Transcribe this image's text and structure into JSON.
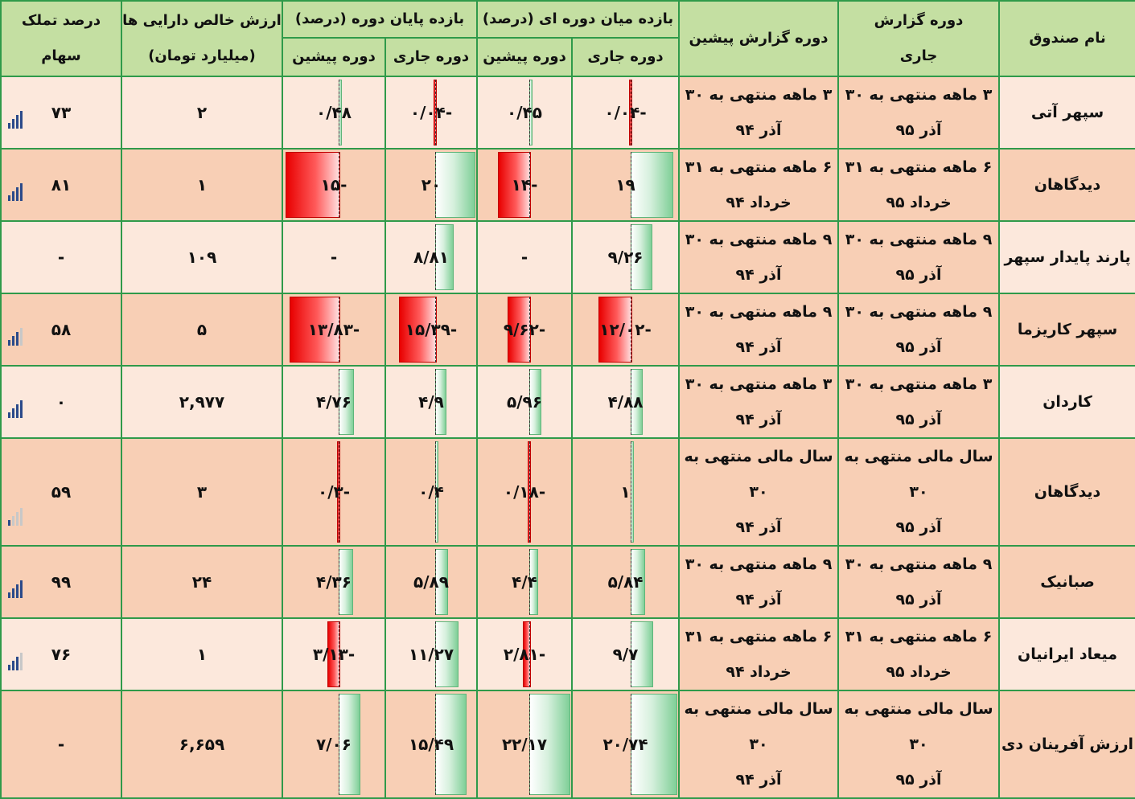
{
  "headers": {
    "fund_name": "نام صندوق",
    "current_period": [
      "دوره گزارش",
      "جاری"
    ],
    "previous_period": "دوره گزارش پیشین",
    "mid_return": "بازده میان دوره ای (درصد)",
    "end_return": "بازده پایان دوره (درصد)",
    "current": "دوره جاری",
    "previous": "دوره پیشین",
    "nav": [
      "ارزش خالص دارایی ها",
      "(میلیارد تومان)"
    ],
    "ownership": [
      "درصد تملک",
      "سهام"
    ]
  },
  "colors": {
    "header_bg": "#c4dfa2",
    "grid": "#2f9a4a",
    "row_light": "#fce8dc",
    "row_dark": "#f8cfb5",
    "positive_bar": "#7fcf97",
    "negative_bar": "#e80000",
    "signal_active": "#2b4a8a",
    "signal_inactive": "#c8c8c8"
  },
  "rows": [
    {
      "name": "سپهر آتی",
      "cur_period": [
        "۳ ماهه منتهی به ۳۰",
        "آذر ۹۵"
      ],
      "prev_period": [
        "۳ ماهه منتهی به ۳۰",
        "آذر ۹۴"
      ],
      "mid_cur": "-۰/۰۴",
      "mid_cur_value": -0.04,
      "mid_prev": "۰/۴۵",
      "mid_prev_value": 0.45,
      "end_cur": "-۰/۰۴",
      "end_cur_value": -0.04,
      "end_prev": "۰/۴۸",
      "end_prev_value": 0.48,
      "nav": "۲",
      "ownership": "۷۳",
      "signal_level": 4
    },
    {
      "name": "دیدگاهان",
      "cur_period": [
        "۶ ماهه منتهی به ۳۱",
        "خرداد ۹۵"
      ],
      "prev_period": [
        "۶ ماهه منتهی به ۳۱",
        "خرداد ۹۴"
      ],
      "mid_cur": "۱۹",
      "mid_cur_value": 19,
      "mid_prev": "-۱۴",
      "mid_prev_value": -14,
      "end_cur": "۲۰",
      "end_cur_value": 20,
      "end_prev": "-۱۵",
      "end_prev_value": -15,
      "nav": "۱",
      "ownership": "۸۱",
      "signal_level": 4
    },
    {
      "name": "پارند پایدار سپهر",
      "cur_period": [
        "۹ ماهه منتهی به ۳۰",
        "آذر ۹۵"
      ],
      "prev_period": [
        "۹ ماهه منتهی به ۳۰",
        "آذر ۹۴"
      ],
      "mid_cur": "۹/۲۶",
      "mid_cur_value": 9.26,
      "mid_prev": "-",
      "mid_prev_value": null,
      "end_cur": "۸/۸۱",
      "end_cur_value": 8.81,
      "end_prev": "-",
      "end_prev_value": null,
      "nav": "۱۰۹",
      "ownership": "-",
      "signal_level": 0
    },
    {
      "name": "سپهر کاریزما",
      "cur_period": [
        "۹ ماهه منتهی به ۳۰",
        "آذر ۹۵"
      ],
      "prev_period": [
        "۹ ماهه منتهی به ۳۰",
        "آذر ۹۴"
      ],
      "mid_cur": "-۱۲/۰۲",
      "mid_cur_value": -12.02,
      "mid_prev": "-۹/۶۲",
      "mid_prev_value": -9.62,
      "end_cur": "-۱۵/۳۹",
      "end_cur_value": -15.39,
      "end_prev": "-۱۳/۸۳",
      "end_prev_value": -13.83,
      "nav": "۵",
      "ownership": "۵۸",
      "signal_level": 3
    },
    {
      "name": "کاردان",
      "cur_period": [
        "۳ ماهه منتهی به ۳۰",
        "آذر ۹۵"
      ],
      "prev_period": [
        "۳ ماهه منتهی به ۳۰",
        "آذر ۹۴"
      ],
      "mid_cur": "۴/۸۸",
      "mid_cur_value": 4.88,
      "mid_prev": "۵/۹۶",
      "mid_prev_value": 5.96,
      "end_cur": "۴/۹",
      "end_cur_value": 4.9,
      "end_prev": "۴/۷۶",
      "end_prev_value": 4.76,
      "nav": "۲,۹۷۷",
      "ownership": "۰",
      "signal_level": 4
    },
    {
      "name": "دیدگاهان",
      "cur_period": [
        "سال مالی منتهی به ۳۰",
        "آذر ۹۵"
      ],
      "prev_period": [
        "سال مالی منتهی به ۳۰",
        "آذر ۹۴"
      ],
      "mid_cur": "۱",
      "mid_cur_value": 1,
      "mid_prev": "-۰/۱۸",
      "mid_prev_value": -0.18,
      "end_cur": "۰/۴",
      "end_cur_value": 0.4,
      "end_prev": "-۰/۳",
      "end_prev_value": -0.3,
      "nav": "۳",
      "ownership": "۵۹",
      "signal_level": 1
    },
    {
      "name": "صبانیک",
      "cur_period": [
        "۹ ماهه منتهی به ۳۰",
        "آذر ۹۵"
      ],
      "prev_period": [
        "۹ ماهه منتهی به ۳۰",
        "آذر ۹۴"
      ],
      "mid_cur": "۵/۸۴",
      "mid_cur_value": 5.84,
      "mid_prev": "۴/۴",
      "mid_prev_value": 4.4,
      "end_cur": "۵/۸۹",
      "end_cur_value": 5.89,
      "end_prev": "۴/۳۶",
      "end_prev_value": 4.36,
      "nav": "۲۴",
      "ownership": "۹۹",
      "signal_level": 4
    },
    {
      "name": "میعاد ایرانیان",
      "cur_period": [
        "۶ ماهه منتهی به ۳۱",
        "خرداد ۹۵"
      ],
      "prev_period": [
        "۶ ماهه منتهی به ۳۱",
        "خرداد ۹۴"
      ],
      "mid_cur": "۹/۷",
      "mid_cur_value": 9.7,
      "mid_prev": "-۲/۸۱",
      "mid_prev_value": -2.81,
      "end_cur": "۱۱/۲۷",
      "end_cur_value": 11.27,
      "end_prev": "-۳/۱۳",
      "end_prev_value": -3.13,
      "nav": "۱",
      "ownership": "۷۶",
      "signal_level": 3
    },
    {
      "name": "ارزش آفرینان دی",
      "cur_period": [
        "سال مالی منتهی به ۳۰",
        "آذر ۹۵"
      ],
      "prev_period": [
        "سال مالی منتهی به ۳۰",
        "آذر ۹۴"
      ],
      "mid_cur": "۲۰/۷۴",
      "mid_cur_value": 20.74,
      "mid_prev": "۲۲/۱۷",
      "mid_prev_value": 22.17,
      "end_cur": "۱۵/۴۹",
      "end_cur_value": 15.49,
      "end_prev": "۷/۰۶",
      "end_prev_value": 7.06,
      "nav": "۶,۶۵۹",
      "ownership": "-",
      "signal_level": 0
    }
  ]
}
